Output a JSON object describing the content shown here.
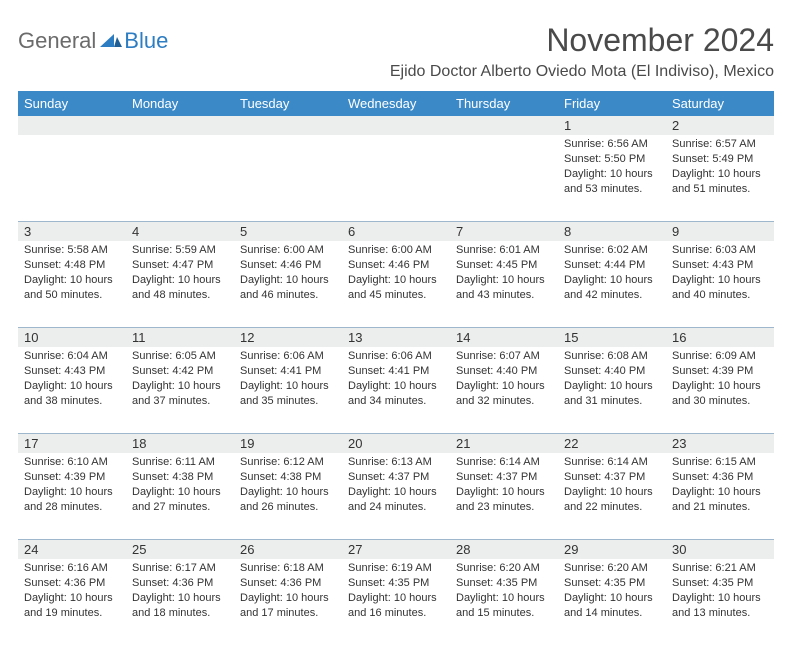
{
  "logo": {
    "general": "General",
    "blue": "Blue"
  },
  "title": "November 2024",
  "location": "Ejido Doctor Alberto Oviedo Mota (El Indiviso), Mexico",
  "weekdays": [
    "Sunday",
    "Monday",
    "Tuesday",
    "Wednesday",
    "Thursday",
    "Friday",
    "Saturday"
  ],
  "colors": {
    "header_bg": "#3b89c7",
    "daynum_bg": "#eceded",
    "rule": "#9fb7cc",
    "text": "#333333",
    "logo_gray": "#6b6b6b",
    "logo_blue": "#2d7dc2"
  },
  "weeks": [
    [
      null,
      null,
      null,
      null,
      null,
      {
        "n": "1",
        "sunrise": "6:56 AM",
        "sunset": "5:50 PM",
        "dl": "10 hours and 53 minutes."
      },
      {
        "n": "2",
        "sunrise": "6:57 AM",
        "sunset": "5:49 PM",
        "dl": "10 hours and 51 minutes."
      }
    ],
    [
      {
        "n": "3",
        "sunrise": "5:58 AM",
        "sunset": "4:48 PM",
        "dl": "10 hours and 50 minutes."
      },
      {
        "n": "4",
        "sunrise": "5:59 AM",
        "sunset": "4:47 PM",
        "dl": "10 hours and 48 minutes."
      },
      {
        "n": "5",
        "sunrise": "6:00 AM",
        "sunset": "4:46 PM",
        "dl": "10 hours and 46 minutes."
      },
      {
        "n": "6",
        "sunrise": "6:00 AM",
        "sunset": "4:46 PM",
        "dl": "10 hours and 45 minutes."
      },
      {
        "n": "7",
        "sunrise": "6:01 AM",
        "sunset": "4:45 PM",
        "dl": "10 hours and 43 minutes."
      },
      {
        "n": "8",
        "sunrise": "6:02 AM",
        "sunset": "4:44 PM",
        "dl": "10 hours and 42 minutes."
      },
      {
        "n": "9",
        "sunrise": "6:03 AM",
        "sunset": "4:43 PM",
        "dl": "10 hours and 40 minutes."
      }
    ],
    [
      {
        "n": "10",
        "sunrise": "6:04 AM",
        "sunset": "4:43 PM",
        "dl": "10 hours and 38 minutes."
      },
      {
        "n": "11",
        "sunrise": "6:05 AM",
        "sunset": "4:42 PM",
        "dl": "10 hours and 37 minutes."
      },
      {
        "n": "12",
        "sunrise": "6:06 AM",
        "sunset": "4:41 PM",
        "dl": "10 hours and 35 minutes."
      },
      {
        "n": "13",
        "sunrise": "6:06 AM",
        "sunset": "4:41 PM",
        "dl": "10 hours and 34 minutes."
      },
      {
        "n": "14",
        "sunrise": "6:07 AM",
        "sunset": "4:40 PM",
        "dl": "10 hours and 32 minutes."
      },
      {
        "n": "15",
        "sunrise": "6:08 AM",
        "sunset": "4:40 PM",
        "dl": "10 hours and 31 minutes."
      },
      {
        "n": "16",
        "sunrise": "6:09 AM",
        "sunset": "4:39 PM",
        "dl": "10 hours and 30 minutes."
      }
    ],
    [
      {
        "n": "17",
        "sunrise": "6:10 AM",
        "sunset": "4:39 PM",
        "dl": "10 hours and 28 minutes."
      },
      {
        "n": "18",
        "sunrise": "6:11 AM",
        "sunset": "4:38 PM",
        "dl": "10 hours and 27 minutes."
      },
      {
        "n": "19",
        "sunrise": "6:12 AM",
        "sunset": "4:38 PM",
        "dl": "10 hours and 26 minutes."
      },
      {
        "n": "20",
        "sunrise": "6:13 AM",
        "sunset": "4:37 PM",
        "dl": "10 hours and 24 minutes."
      },
      {
        "n": "21",
        "sunrise": "6:14 AM",
        "sunset": "4:37 PM",
        "dl": "10 hours and 23 minutes."
      },
      {
        "n": "22",
        "sunrise": "6:14 AM",
        "sunset": "4:37 PM",
        "dl": "10 hours and 22 minutes."
      },
      {
        "n": "23",
        "sunrise": "6:15 AM",
        "sunset": "4:36 PM",
        "dl": "10 hours and 21 minutes."
      }
    ],
    [
      {
        "n": "24",
        "sunrise": "6:16 AM",
        "sunset": "4:36 PM",
        "dl": "10 hours and 19 minutes."
      },
      {
        "n": "25",
        "sunrise": "6:17 AM",
        "sunset": "4:36 PM",
        "dl": "10 hours and 18 minutes."
      },
      {
        "n": "26",
        "sunrise": "6:18 AM",
        "sunset": "4:36 PM",
        "dl": "10 hours and 17 minutes."
      },
      {
        "n": "27",
        "sunrise": "6:19 AM",
        "sunset": "4:35 PM",
        "dl": "10 hours and 16 minutes."
      },
      {
        "n": "28",
        "sunrise": "6:20 AM",
        "sunset": "4:35 PM",
        "dl": "10 hours and 15 minutes."
      },
      {
        "n": "29",
        "sunrise": "6:20 AM",
        "sunset": "4:35 PM",
        "dl": "10 hours and 14 minutes."
      },
      {
        "n": "30",
        "sunrise": "6:21 AM",
        "sunset": "4:35 PM",
        "dl": "10 hours and 13 minutes."
      }
    ]
  ],
  "labels": {
    "sunrise": "Sunrise:",
    "sunset": "Sunset:",
    "daylight": "Daylight:"
  }
}
